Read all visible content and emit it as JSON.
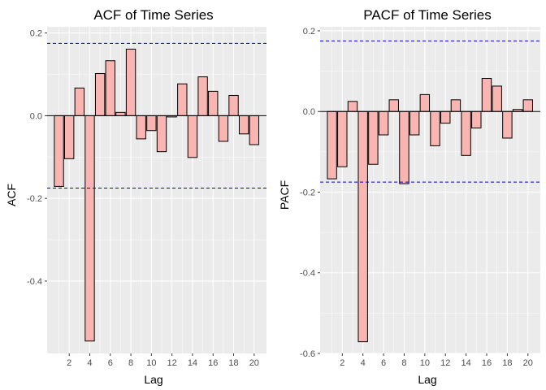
{
  "chart_data": [
    {
      "type": "bar",
      "title": "ACF of Time Series",
      "xlabel": "Lag",
      "ylabel": "ACF",
      "x": [
        1,
        2,
        3,
        4,
        5,
        6,
        7,
        8,
        9,
        10,
        11,
        12,
        13,
        14,
        15,
        16,
        17,
        18,
        19,
        20
      ],
      "values": [
        -0.171,
        -0.104,
        0.067,
        -0.545,
        0.102,
        0.133,
        0.008,
        0.161,
        -0.056,
        -0.036,
        -0.087,
        -0.003,
        0.077,
        -0.101,
        0.094,
        0.059,
        -0.062,
        0.049,
        -0.044,
        -0.07
      ],
      "xticks": [
        2,
        4,
        6,
        8,
        10,
        12,
        14,
        16,
        18,
        20
      ],
      "xtick_labels": [
        "2",
        "4",
        "6",
        "8",
        "10",
        "12",
        "14",
        "16",
        "18",
        "20"
      ],
      "yticks": [
        0.2,
        0.0,
        -0.2,
        -0.4
      ],
      "ytick_labels": [
        "0.2",
        "0.0",
        "-0.2",
        "-0.4"
      ],
      "xlim": [
        -0.15,
        21.2
      ],
      "ylim": [
        -0.575,
        0.215
      ],
      "confidence_bounds": [
        0.175,
        -0.175
      ],
      "bar_fill": "#F8B5B1",
      "bar_stroke": "#000000",
      "bound_color": "#0000CC",
      "panel_bg": "#EBEBEB",
      "grid": true
    },
    {
      "type": "bar",
      "title": "PACF of Time Series",
      "xlabel": "Lag",
      "ylabel": "PACF",
      "x": [
        1,
        2,
        3,
        4,
        5,
        6,
        7,
        8,
        9,
        10,
        11,
        12,
        13,
        14,
        15,
        16,
        17,
        18,
        19,
        20
      ],
      "values": [
        -0.167,
        -0.137,
        0.025,
        -0.571,
        -0.131,
        -0.058,
        0.029,
        -0.179,
        -0.058,
        0.042,
        -0.085,
        -0.029,
        0.029,
        -0.109,
        -0.041,
        0.082,
        0.063,
        -0.066,
        0.005,
        0.029
      ],
      "xticks": [
        2,
        4,
        6,
        8,
        10,
        12,
        14,
        16,
        18,
        20
      ],
      "xtick_labels": [
        "2",
        "4",
        "6",
        "8",
        "10",
        "12",
        "14",
        "16",
        "18",
        "20"
      ],
      "yticks": [
        0.2,
        0.0,
        -0.2,
        -0.4,
        -0.6
      ],
      "ytick_labels": [
        "0.2",
        "0.0",
        "-0.2",
        "-0.4",
        "-0.6"
      ],
      "xlim": [
        -0.15,
        21.2
      ],
      "ylim": [
        -0.6,
        0.21
      ],
      "confidence_bounds": [
        0.175,
        -0.175
      ],
      "bar_fill": "#F8B5B1",
      "bar_stroke": "#000000",
      "bound_color": "#0000CC",
      "panel_bg": "#EBEBEB",
      "grid": true
    }
  ]
}
